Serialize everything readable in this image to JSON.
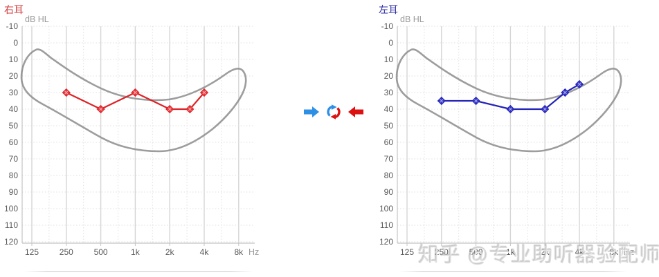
{
  "colors": {
    "grid_major": "#d5d5d5",
    "grid_dotted": "#dfdfdf",
    "axis": "#c4c4c4",
    "tick_text": "#595959",
    "muted_text": "#9a9a9a",
    "banana_outline": "#8c8c8c",
    "arrow_blue": "#2e90e5",
    "arrow_red": "#dc1212"
  },
  "chart_data": [
    {
      "type": "line",
      "ear": "right",
      "title": "右耳",
      "title_color": "#cf3a3a",
      "color": "#dd2227",
      "marker_fill": "#e4393e",
      "marker": "diamond",
      "ylabel": "dB HL",
      "xlabel": "Hz",
      "x_tick_labels": [
        "125",
        "250",
        "500",
        "1k",
        "2k",
        "4k",
        "8k"
      ],
      "x_tick_freqs": [
        125,
        250,
        500,
        1000,
        2000,
        4000,
        8000
      ],
      "y_ticks": [
        -10,
        0,
        10,
        20,
        30,
        40,
        50,
        60,
        70,
        80,
        90,
        100,
        110,
        120
      ],
      "ylim": [
        -10,
        120
      ],
      "x_scale": "log2",
      "grid": true,
      "overlay": "speech-banana",
      "points": [
        {
          "freq_hz": 250,
          "db_hl": 30
        },
        {
          "freq_hz": 500,
          "db_hl": 40
        },
        {
          "freq_hz": 1000,
          "db_hl": 30
        },
        {
          "freq_hz": 2000,
          "db_hl": 40
        },
        {
          "freq_hz": 3000,
          "db_hl": 40
        },
        {
          "freq_hz": 4000,
          "db_hl": 30
        }
      ]
    },
    {
      "type": "line",
      "ear": "left",
      "title": "左耳",
      "title_color": "#2b2ba3",
      "color": "#2323b8",
      "marker_fill": "#3434c4",
      "marker": "diamond",
      "ylabel": "dB HL",
      "xlabel": "Hz",
      "x_tick_labels": [
        "125",
        "250",
        "500",
        "1k",
        "2k",
        "4k",
        "8k"
      ],
      "x_tick_freqs": [
        125,
        250,
        500,
        1000,
        2000,
        4000,
        8000
      ],
      "y_ticks": [
        -10,
        0,
        10,
        20,
        30,
        40,
        50,
        60,
        70,
        80,
        90,
        100,
        110,
        120
      ],
      "ylim": [
        -10,
        120
      ],
      "x_scale": "log2",
      "grid": true,
      "overlay": "speech-banana",
      "points": [
        {
          "freq_hz": 250,
          "db_hl": 35
        },
        {
          "freq_hz": 500,
          "db_hl": 35
        },
        {
          "freq_hz": 1000,
          "db_hl": 40
        },
        {
          "freq_hz": 2000,
          "db_hl": 40
        },
        {
          "freq_hz": 3000,
          "db_hl": 30
        },
        {
          "freq_hz": 4000,
          "db_hl": 25
        }
      ]
    }
  ],
  "toolbar": {
    "buttons": [
      {
        "icon": "arrow-right-icon",
        "action": "copy-right-to-left"
      },
      {
        "icon": "swap-refresh-icon",
        "action": "swap-ears"
      },
      {
        "icon": "arrow-left-icon",
        "action": "copy-left-to-right"
      }
    ]
  },
  "watermark": "知乎 @专业助听器验配师"
}
